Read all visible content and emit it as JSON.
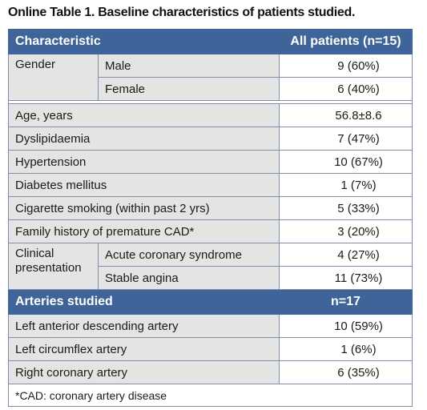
{
  "caption": "Online Table 1. Baseline characteristics of patients studied.",
  "header": {
    "characteristic": "Characteristic",
    "all_patients": "All patients (n=15)"
  },
  "gender": {
    "label": "Gender",
    "rows": [
      {
        "label": "Male",
        "value": "9 (60%)"
      },
      {
        "label": "Female",
        "value": "6 (40%)"
      }
    ]
  },
  "simple_rows": [
    {
      "label": "Age, years",
      "value": "56.8±8.6"
    },
    {
      "label": "Dyslipidaemia",
      "value": "7 (47%)"
    },
    {
      "label": "Hypertension",
      "value": "10 (67%)"
    },
    {
      "label": "Diabetes mellitus",
      "value": "1 (7%)"
    },
    {
      "label": "Cigarette smoking (within past 2 yrs)",
      "value": "5 (33%)"
    },
    {
      "label": "Family history of premature CAD*",
      "value": "3 (20%)"
    }
  ],
  "clinical": {
    "label": "Clinical presentation",
    "rows": [
      {
        "label": "Acute coronary syndrome",
        "value": "4 (27%)"
      },
      {
        "label": "Stable angina",
        "value": "11 (73%)"
      }
    ]
  },
  "arteries_header": {
    "label": "Arteries studied",
    "value": "n=17"
  },
  "arteries": [
    {
      "label": "Left anterior descending artery",
      "value": "10 (59%)"
    },
    {
      "label": "Left circumflex artery",
      "value": "1 (6%)"
    },
    {
      "label": "Right coronary artery",
      "value": "6 (35%)"
    }
  ],
  "footnote": "*CAD: coronary artery disease"
}
